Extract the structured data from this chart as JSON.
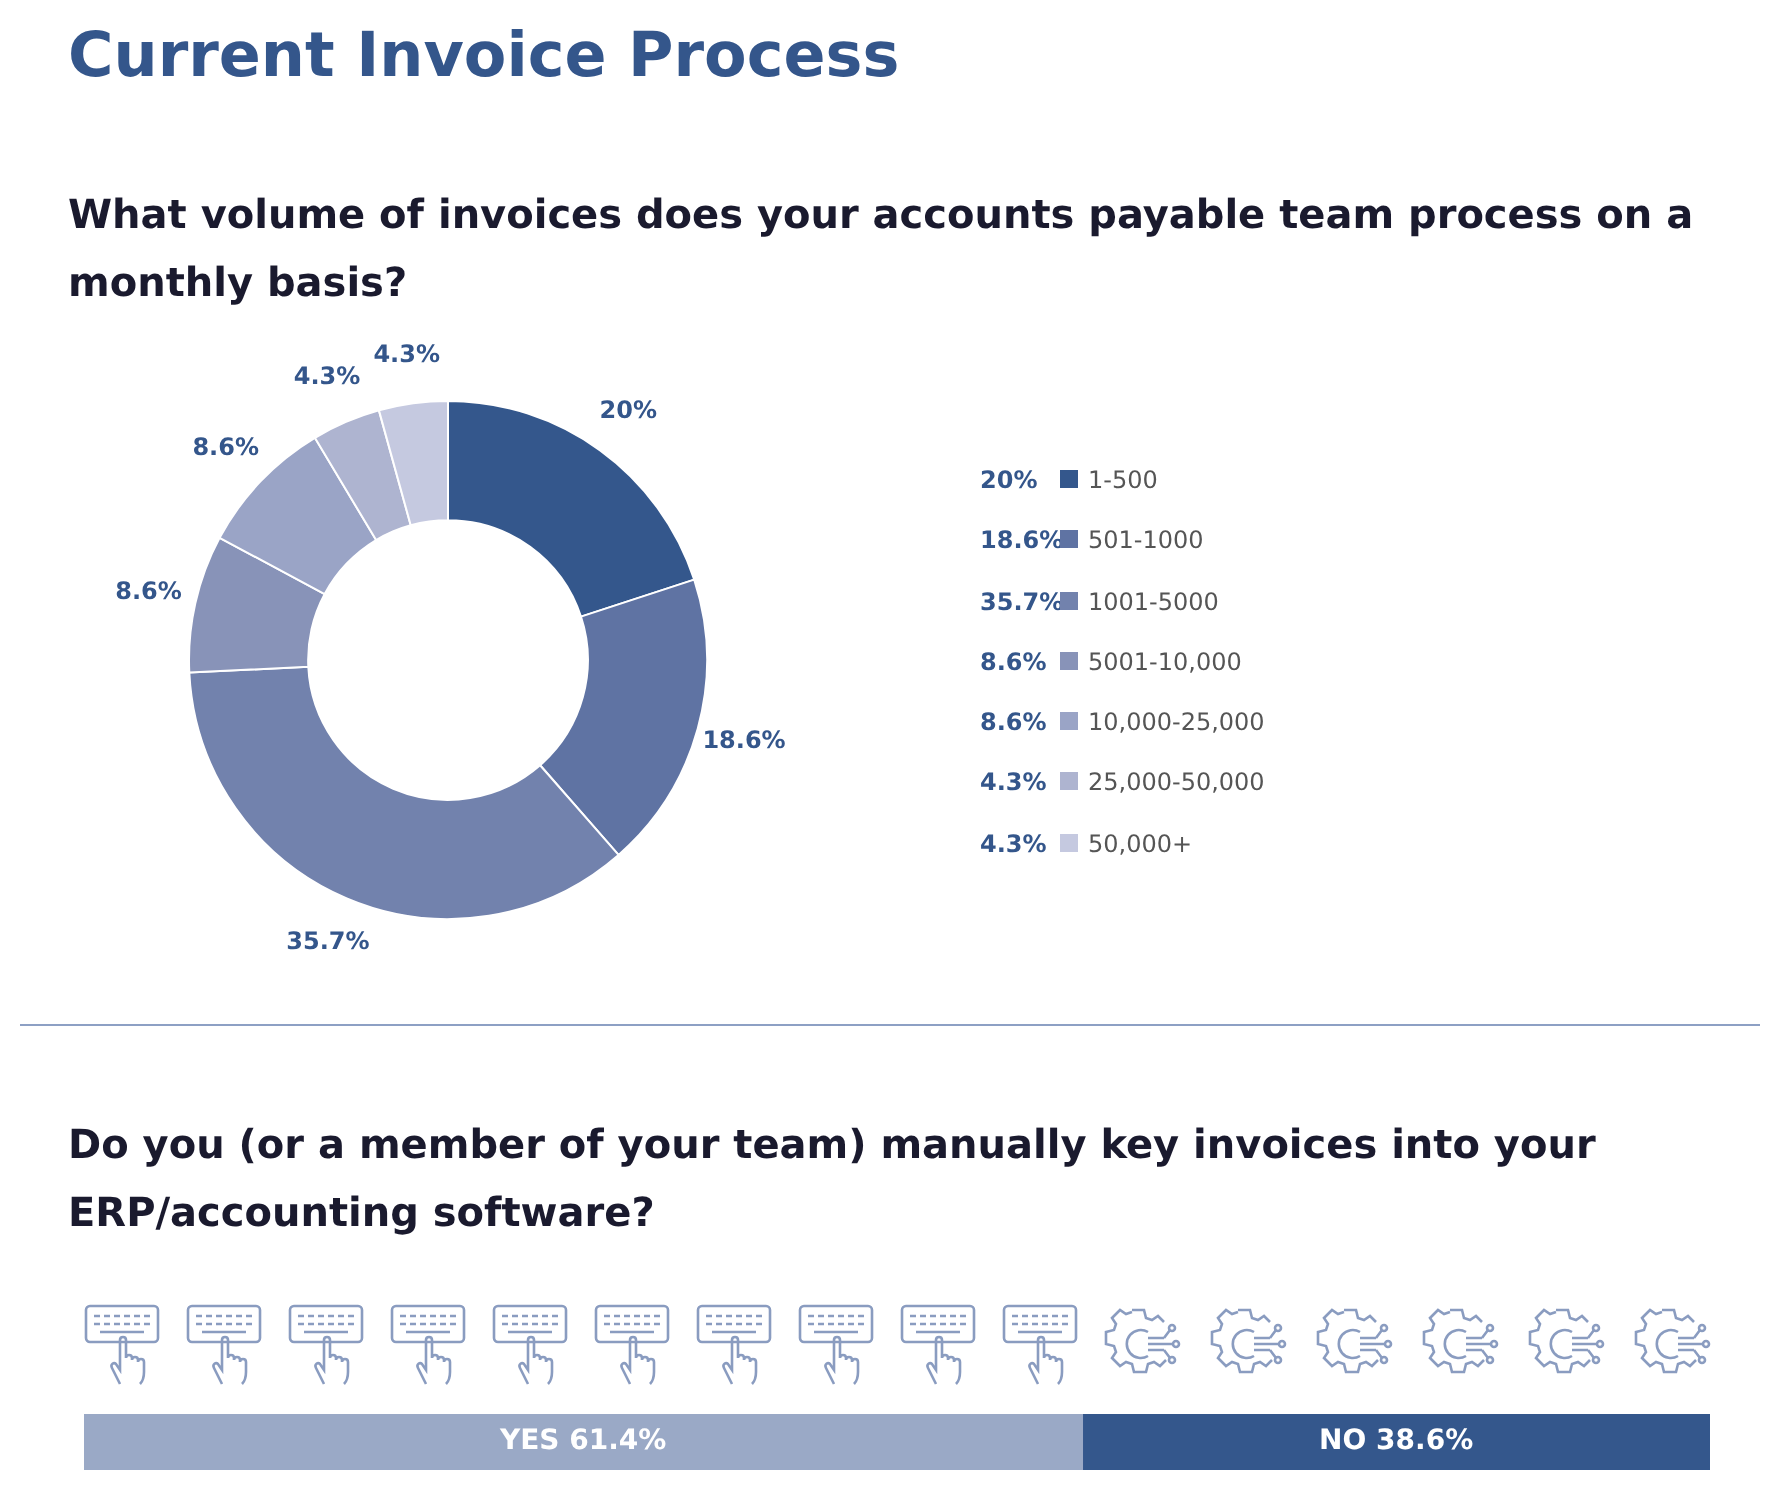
{
  "chart_data": [
    {
      "type": "donut",
      "title": "Current Invoice Process",
      "subtitle": "What volume of invoices does your accounts payable team process on a monthly basis?",
      "categories": [
        "1-500",
        "501-1000",
        "1001-5000",
        "5001-10,000",
        "10,000-25,000",
        "25,000-50,000",
        "50,000+"
      ],
      "values": [
        20,
        18.6,
        35.7,
        8.6,
        8.6,
        4.3,
        4.3
      ],
      "colors": [
        "#34578c",
        "#5f73a3",
        "#7282ad",
        "#8893b8",
        "#9aa4c6",
        "#aeb4d0",
        "#c5c9e0"
      ],
      "value_labels": [
        "20%",
        "18.6%",
        "35.7%",
        "8.6%",
        "8.6%",
        "4.3%",
        "4.3%"
      ],
      "legend": "right"
    },
    {
      "type": "bar",
      "orientation": "horizontal",
      "stacked": true,
      "title": "Do you (or a member of your team) manually key invoices into your ERP/accounting software?",
      "categories": [
        null
      ],
      "series": [
        {
          "name": "YES",
          "color": "#9aa9c6",
          "values": [
            61.4
          ],
          "value_labels": [
            "61.4%"
          ]
        },
        {
          "name": "NO",
          "color": "#34578c",
          "values": [
            38.6
          ],
          "value_labels": [
            "38.6%"
          ]
        }
      ],
      "tick_labels": false,
      "legend": false
    }
  ]
}
